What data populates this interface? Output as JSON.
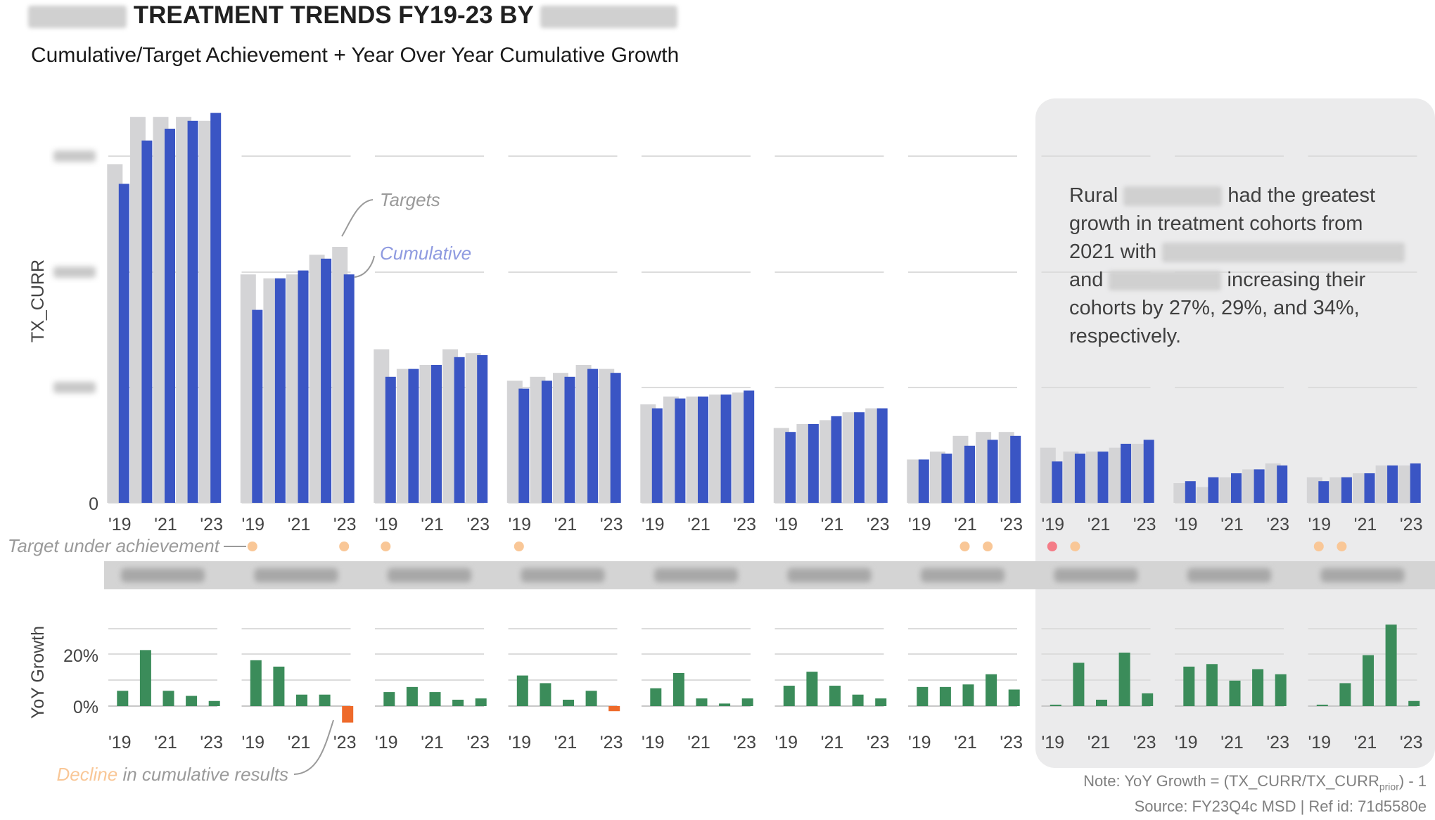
{
  "title": {
    "text": "TREATMENT TRENDS FY19-23 BY"
  },
  "subtitle": "Cumulative/Target Achievement + Year Over Year Cumulative Growth",
  "annotations": {
    "targets": "Targets",
    "cumulative": "Cumulative",
    "target_under": "Target under achievement",
    "decline_prefix": "Decline",
    "decline_suffix": " in cumulative results"
  },
  "callout": {
    "p1": "Rural ",
    "p2": " had the greatest growth in treatment cohorts from 2021 with ",
    "p3": " and ",
    "p4": " increasing their cohorts by 27%, 29%, and 34%, respectively."
  },
  "note": "Note: YoY Growth = (TX_CURR/TX_CURR",
  "note_sub": "prior",
  "note_end": ") - 1",
  "source": "Source: FY23Q4c MSD | Ref id: 71d5580e",
  "colors": {
    "cumulative": "#3a55c4",
    "target": "#d4d4d6",
    "growth": "#3b8c5a",
    "decline": "#ee6a2a",
    "under": "#f9c797",
    "under_strong": "#f47c87",
    "highlight_bg": "#ebebec",
    "grid": "#dcdcdc",
    "annot_gray": "#9a9a9a",
    "annot_blue": "#8e9ae0"
  },
  "chart_data": {
    "type": "bar",
    "years": [
      "'19",
      "'20",
      "'21",
      "'22",
      "'23"
    ],
    "year_tick_labels": [
      "'19",
      "'21",
      "'23"
    ],
    "top_panel": {
      "ylabel": "TX_CURR",
      "y_ticks": [
        0
      ],
      "ylim": [
        0,
        100
      ],
      "note": "values normalized to tallest bar = 100; axis tick values are redacted in the source image"
    },
    "bottom_panel": {
      "ylabel": "YoY Growth",
      "y_ticks": [
        "0%",
        "20%"
      ],
      "ylim": [
        -0.07,
        0.35
      ]
    },
    "series_names": [
      "Targets",
      "Cumulative"
    ],
    "groups": [
      {
        "targets": [
          86,
          98,
          98,
          98,
          97
        ],
        "cumulative": [
          81,
          92,
          95,
          97,
          99
        ],
        "yoy": [
          0.06,
          0.22,
          0.06,
          0.04,
          0.02
        ],
        "under": [
          false,
          false,
          false,
          false,
          false
        ]
      },
      {
        "targets": [
          58,
          57,
          58,
          63,
          65
        ],
        "cumulative": [
          49,
          57,
          59,
          62,
          58
        ],
        "yoy": [
          0.18,
          0.155,
          0.045,
          0.045,
          -0.065
        ],
        "under": [
          true,
          false,
          false,
          false,
          true
        ]
      },
      {
        "targets": [
          39,
          34,
          35,
          39,
          38
        ],
        "cumulative": [
          32,
          34,
          35,
          37,
          37.5
        ],
        "yoy": [
          0.055,
          0.075,
          0.055,
          0.025,
          0.03
        ],
        "under": [
          true,
          false,
          false,
          false,
          false
        ]
      },
      {
        "targets": [
          31,
          32,
          33,
          35,
          34
        ],
        "cumulative": [
          29,
          31,
          32,
          34,
          33
        ],
        "yoy": [
          0.12,
          0.09,
          0.025,
          0.06,
          -0.02
        ],
        "under": [
          true,
          false,
          false,
          false,
          false
        ]
      },
      {
        "targets": [
          25,
          27,
          27,
          27.5,
          28
        ],
        "cumulative": [
          24,
          26.5,
          27,
          27.5,
          28.5
        ],
        "yoy": [
          0.07,
          0.13,
          0.03,
          0.01,
          0.03
        ],
        "under": [
          false,
          false,
          false,
          false,
          false
        ]
      },
      {
        "targets": [
          19,
          20,
          21,
          23,
          24
        ],
        "cumulative": [
          18,
          20,
          22,
          23,
          24
        ],
        "yoy": [
          0.08,
          0.135,
          0.08,
          0.045,
          0.03
        ],
        "under": [
          false,
          false,
          false,
          false,
          false
        ]
      },
      {
        "targets": [
          11,
          13,
          17,
          18,
          18
        ],
        "cumulative": [
          11,
          12.5,
          14.5,
          16,
          17
        ],
        "yoy": [
          0.075,
          0.075,
          0.085,
          0.125,
          0.065
        ],
        "under": [
          false,
          false,
          true,
          true,
          false
        ]
      },
      {
        "targets": [
          14,
          13,
          13,
          14,
          15
        ],
        "cumulative": [
          10.5,
          12.5,
          13,
          15,
          16
        ],
        "yoy": [
          0.005,
          0.17,
          0.025,
          0.21,
          0.05
        ],
        "under": [
          true,
          true,
          false,
          false,
          false
        ]
      },
      {
        "targets": [
          5,
          4,
          6.5,
          8.5,
          10
        ],
        "cumulative": [
          5.5,
          6.5,
          7.5,
          8.5,
          9.5
        ],
        "yoy": [
          0.155,
          0.165,
          0.1,
          0.145,
          0.125
        ],
        "under": [
          false,
          false,
          false,
          false,
          false
        ]
      },
      {
        "targets": [
          6.5,
          6.5,
          7.5,
          9.5,
          9.5
        ],
        "cumulative": [
          5.5,
          6.5,
          7.5,
          9.5,
          10
        ],
        "yoy": [
          0.003,
          0.09,
          0.2,
          0.32,
          0.02
        ],
        "under": [
          true,
          true,
          false,
          false,
          false
        ]
      }
    ]
  }
}
